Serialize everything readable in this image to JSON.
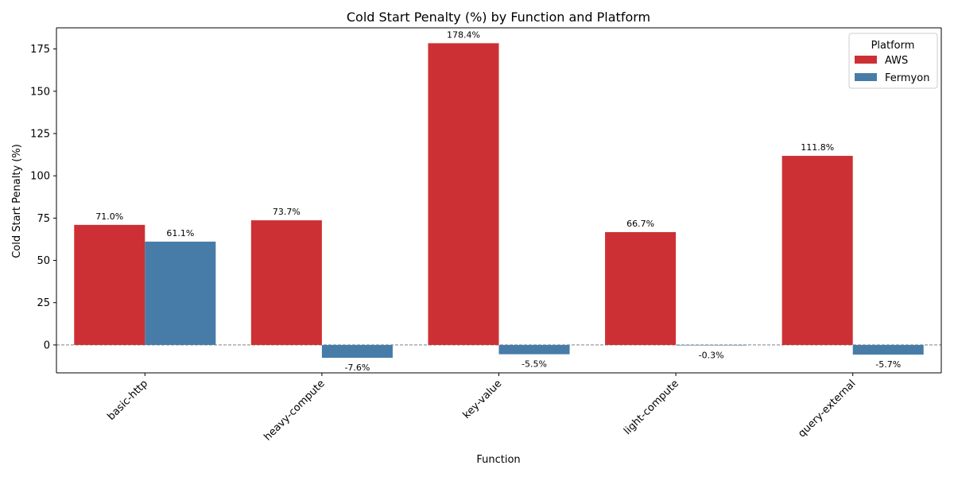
{
  "chart_data": {
    "type": "bar",
    "title": "Cold Start Penalty (%) by Function and Platform",
    "xlabel": "Function",
    "ylabel": "Cold Start Penalty (%)",
    "categories": [
      "basic-http",
      "heavy-compute",
      "key-value",
      "light-compute",
      "query-external"
    ],
    "series": [
      {
        "name": "AWS",
        "color": "#cd3034",
        "values": [
          71.0,
          73.7,
          178.4,
          66.7,
          111.8
        ],
        "labels": [
          "71.0%",
          "73.7%",
          "178.4%",
          "66.7%",
          "111.8%"
        ]
      },
      {
        "name": "Fermyon",
        "color": "#477ca8",
        "values": [
          61.1,
          -7.6,
          -5.5,
          -0.3,
          -5.7
        ],
        "labels": [
          "61.1%",
          "-7.6%",
          "-5.5%",
          "-0.3%",
          "-5.7%"
        ]
      }
    ],
    "ylim": [
      -16.5,
      187.5
    ],
    "yticks": [
      0,
      25,
      50,
      75,
      100,
      125,
      150,
      175
    ],
    "zero_line": true,
    "legend": {
      "title": "Platform",
      "placement": "top-right"
    }
  }
}
